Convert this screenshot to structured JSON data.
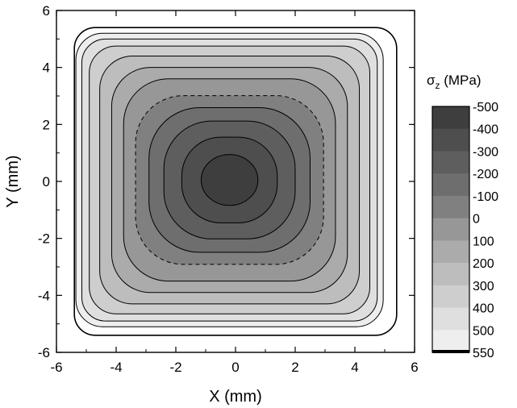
{
  "chart_data": {
    "type": "contour",
    "title": "",
    "xlabel": "X (mm)",
    "ylabel": "Y (mm)",
    "xlim": [
      -6,
      6
    ],
    "ylim": [
      -6,
      6
    ],
    "xticks": [
      -6,
      -4,
      -2,
      0,
      2,
      4,
      6
    ],
    "yticks": [
      -6,
      -4,
      -2,
      0,
      2,
      4,
      6
    ],
    "outline_half_width": 5.4,
    "colorbar": {
      "title_symbol": "σ",
      "title_subscript": "z",
      "title_unit": " (MPa)",
      "levels": [
        "-500",
        "-400",
        "-300",
        "-200",
        "-100",
        "0",
        "100",
        "200",
        "300",
        "400",
        "500",
        "550"
      ],
      "colors": [
        "#3e3e3e",
        "#4e4e4e",
        "#5e5e5e",
        "#6e6e6e",
        "#808080",
        "#979797",
        "#ababab",
        "#bdbdbd",
        "#cecece",
        "#dfdfdf",
        "#eeeeee"
      ]
    },
    "contours": [
      {
        "level": 550,
        "half_width": 5.15,
        "corner_radius": 0.9,
        "color": "#eeeeee",
        "dashed": false
      },
      {
        "level": 500,
        "half_width": 4.95,
        "corner_radius": 0.8,
        "color": "#dfdfdf",
        "dashed": false
      },
      {
        "level": 400,
        "half_width": 4.7,
        "corner_radius": 0.9,
        "color": "#cecece",
        "dashed": false
      },
      {
        "level": 300,
        "half_width": 4.35,
        "corner_radius": 1.1,
        "color": "#bdbdbd",
        "dashed": false
      },
      {
        "level": 200,
        "half_width": 3.95,
        "corner_radius": 1.3,
        "color": "#ababab",
        "dashed": false
      },
      {
        "level": 100,
        "half_width": 3.55,
        "corner_radius": 1.5,
        "color": "#979797",
        "dashed": false
      },
      {
        "level": 0,
        "half_width": 3.15,
        "corner_radius": 1.6,
        "color": "#808080",
        "dashed": true
      },
      {
        "level": -100,
        "half_width": 2.7,
        "corner_radius": 1.7,
        "color": "#6e6e6e",
        "dashed": false
      },
      {
        "level": -200,
        "half_width": 2.2,
        "corner_radius": 1.6,
        "color": "#5e5e5e",
        "dashed": false
      },
      {
        "level": -300,
        "half_width": 1.6,
        "corner_radius": 1.3,
        "color": "#4e4e4e",
        "dashed": false
      },
      {
        "level": -400,
        "half_width": 0.95,
        "corner_radius": 0.95,
        "color": "#3e3e3e",
        "dashed": false
      }
    ]
  }
}
